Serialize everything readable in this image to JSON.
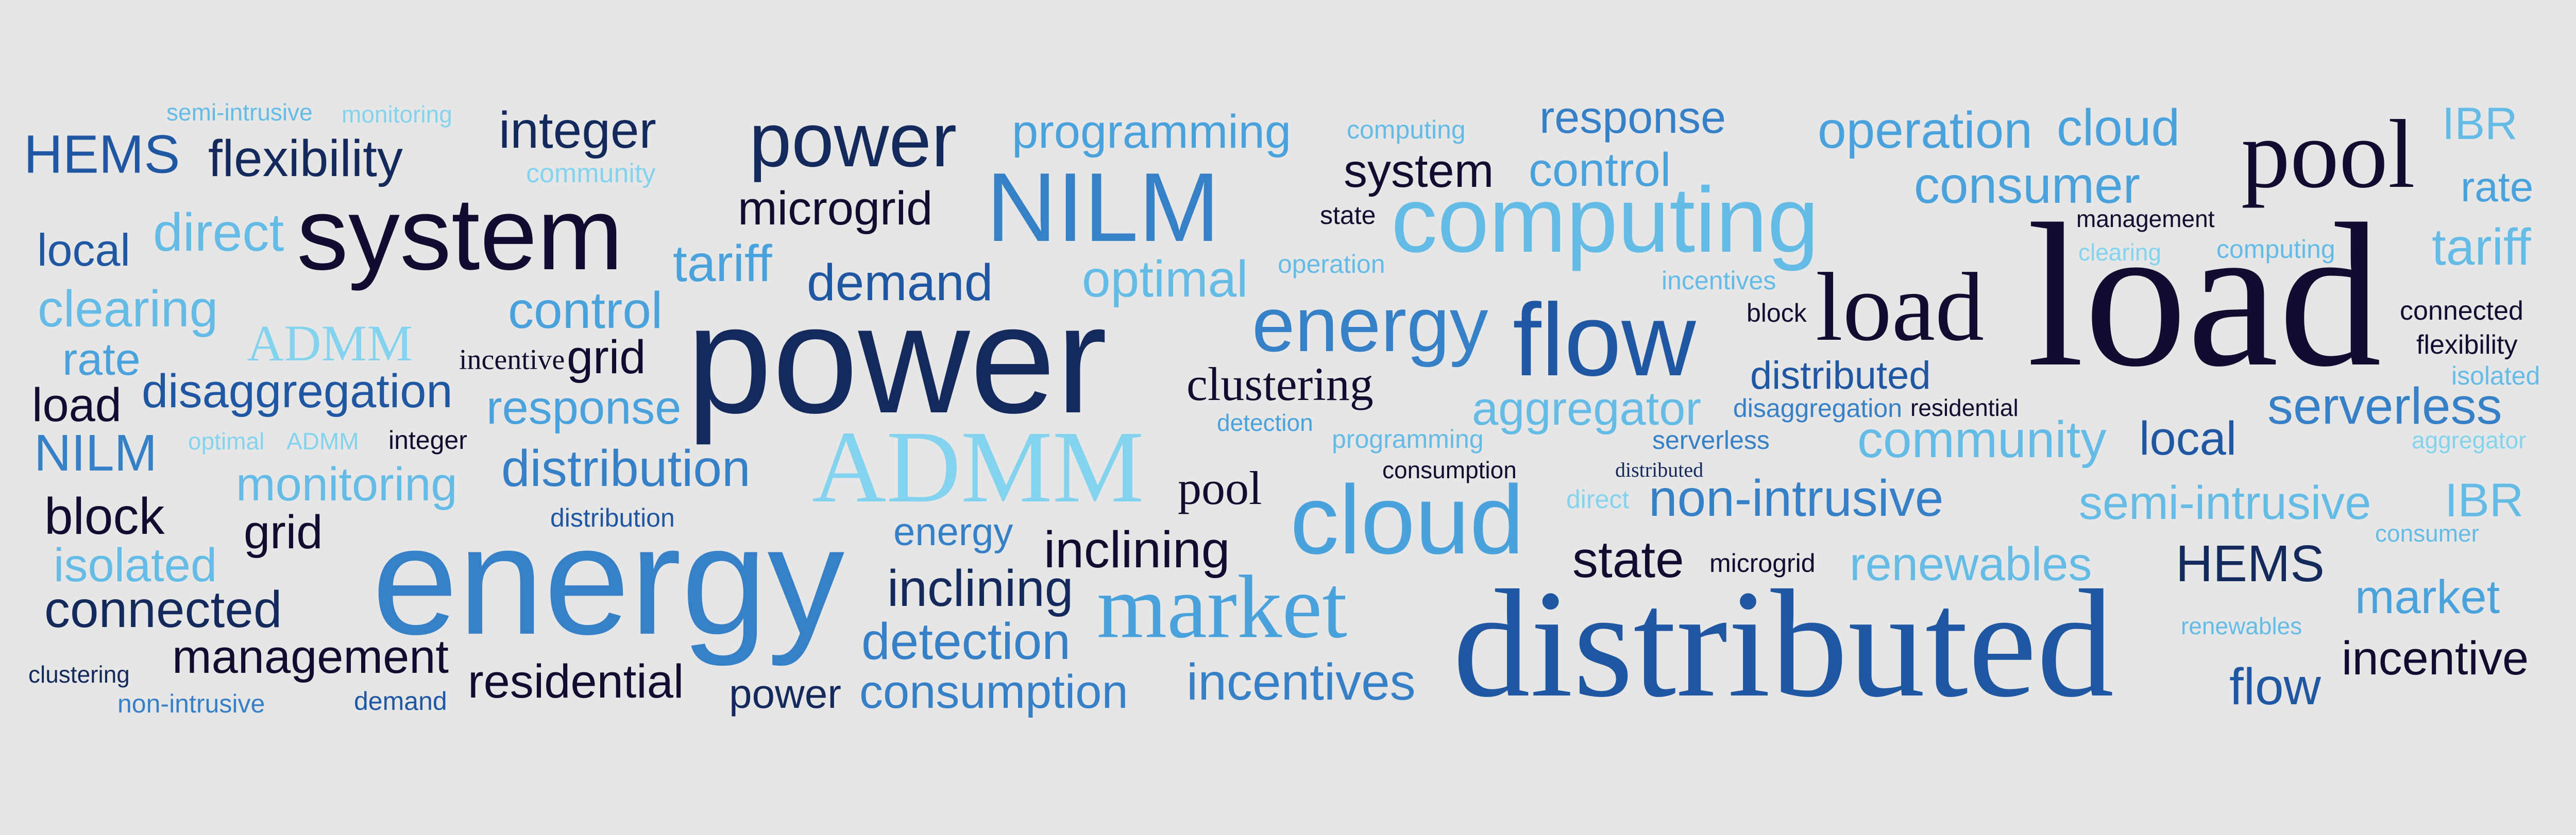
{
  "colors": {
    "background": "#e6e6e6",
    "c1": "#120c30",
    "c2": "#142a5c",
    "c3": "#1f57a3",
    "c4": "#3680c8",
    "c5": "#4aa2dc",
    "c6": "#64bbe6",
    "c7": "#83d3ee"
  },
  "words": [
    "semi-intrusive",
    "monitoring",
    "HEMS",
    "flexibility",
    "integer",
    "community",
    "power",
    "programming",
    "computing",
    "response",
    "operation",
    "cloud",
    "IBR",
    "system",
    "control",
    "consumer",
    "pool",
    "rate",
    "microgrid",
    "NILM",
    "state",
    "computing",
    "management",
    "local",
    "direct",
    "system",
    "tariff",
    "clearing",
    "computing",
    "tariff",
    "demand",
    "optimal",
    "operation",
    "incentives",
    "load",
    "load",
    "block",
    "connected",
    "clearing",
    "control",
    "flexibility",
    "rate",
    "ADMM",
    "power",
    "energy",
    "flow",
    "distributed",
    "isolated",
    "incentive",
    "grid",
    "load",
    "disaggregation",
    "response",
    "clustering",
    "aggregator",
    "disaggregation",
    "residential",
    "serverless",
    "detection",
    "NILM",
    "optimal",
    "ADMM",
    "integer",
    "ADMM",
    "programming",
    "serverless",
    "community",
    "local",
    "aggregator",
    "distributed",
    "consumption",
    "monitoring",
    "distribution",
    "pool",
    "block",
    "direct",
    "non-intrusive",
    "semi-intrusive",
    "IBR",
    "distribution",
    "cloud",
    "grid",
    "energy",
    "consumer",
    "isolated",
    "inclining",
    "state",
    "microgrid",
    "renewables",
    "HEMS",
    "energy",
    "inclining",
    "market",
    "connected",
    "market",
    "renewables",
    "distributed",
    "detection",
    "clustering",
    "management",
    "incentive",
    "flow",
    "incentives",
    "residential",
    "power",
    "consumption",
    "demand",
    "non-intrusive"
  ]
}
